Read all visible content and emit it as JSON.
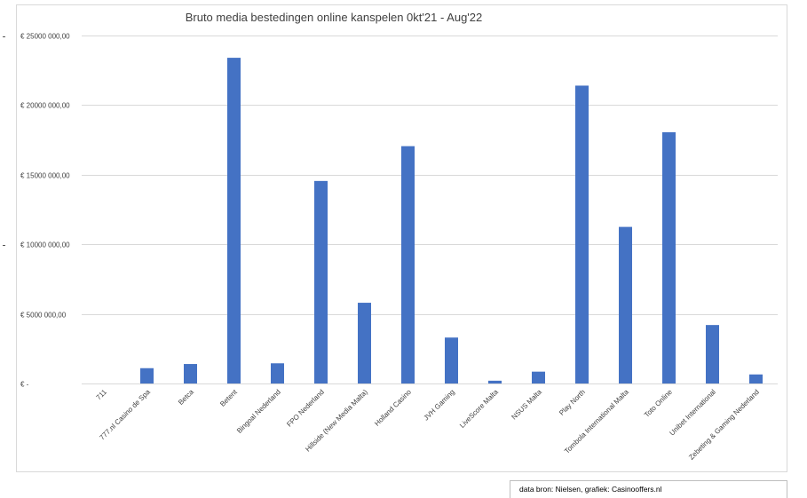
{
  "chart_data": {
    "type": "bar",
    "title": "Bruto media bestedingen online kanspelen 0kt'21 - Aug'22",
    "categories": [
      "711",
      "777.nl Casino de Spa",
      "Betca",
      "Betent",
      "Bingoal Nederland",
      "FPO Nederland",
      "Hillside (New Media Malta)",
      "Holland Casino",
      "JVH Gaming",
      "LiveScore Malta",
      "NSUS Malta",
      "Play North",
      "Tombola International Malta",
      "Toto Online",
      "Unibet International",
      "Zebeting & Gaming Nederland"
    ],
    "values": [
      0,
      1100000,
      1400000,
      23400000,
      1450000,
      14550000,
      5800000,
      17050000,
      3300000,
      200000,
      850000,
      21400000,
      11250000,
      18050000,
      4200000,
      650000
    ],
    "ylim": [
      0,
      25000000
    ],
    "yticks": [
      0,
      5000000,
      10000000,
      15000000,
      20000000,
      25000000
    ],
    "ytick_labels": [
      "€ -",
      "€ 5000 000,00",
      "€ 10000 000,00",
      "€ 15000 000,00",
      "€ 20000 000,00",
      "€ 25000 000,00"
    ],
    "xlabel": "",
    "ylabel": "",
    "grid": true,
    "legend": "none",
    "bar_color": "#4472c4",
    "grid_color": "#d9d9d9"
  },
  "source_note": "data bron: Nielsen,  grafiek: Casinooffers.nl"
}
